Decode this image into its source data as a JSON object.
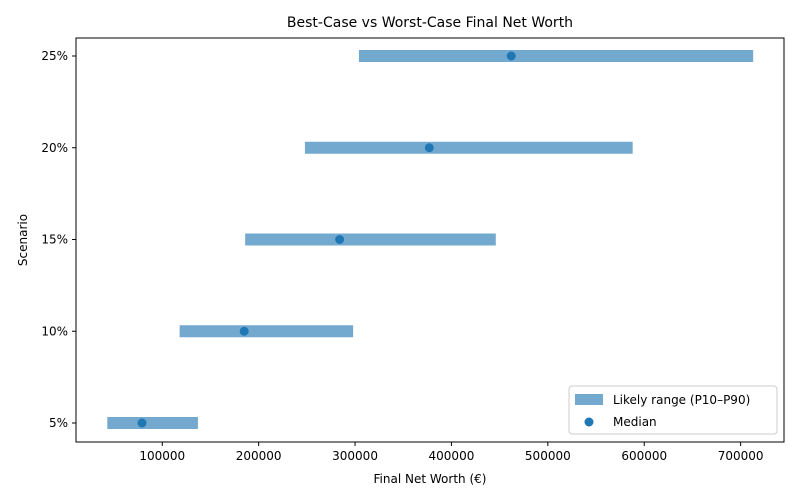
{
  "chart_data": {
    "type": "bar",
    "subtype": "horizontal-range-with-median",
    "title": "Best-Case vs Worst-Case Final Net Worth",
    "xlabel": "Final Net Worth (€)",
    "ylabel": "Scenario",
    "categories": [
      "5%",
      "10%",
      "15%",
      "20%",
      "25%"
    ],
    "series": [
      {
        "name": "Likely range (P10–P90)",
        "kind": "range",
        "color": "#74a9cf",
        "low": [
          43000,
          118000,
          186000,
          248000,
          304000
        ],
        "high": [
          137000,
          298000,
          446000,
          588000,
          713000
        ]
      },
      {
        "name": "Median",
        "kind": "scatter",
        "color": "#1f77b4",
        "values": [
          79000,
          185000,
          284000,
          377000,
          462000
        ]
      }
    ],
    "xlim": [
      10500,
      745000
    ],
    "xticks": [
      100000,
      200000,
      300000,
      400000,
      500000,
      600000,
      700000
    ],
    "xtick_labels": [
      "100000",
      "200000",
      "300000",
      "400000",
      "500000",
      "600000",
      "700000"
    ],
    "grid": false,
    "legend_position": "lower right"
  },
  "legend": {
    "range_label": "Likely range (P10–P90)",
    "median_label": "Median"
  }
}
